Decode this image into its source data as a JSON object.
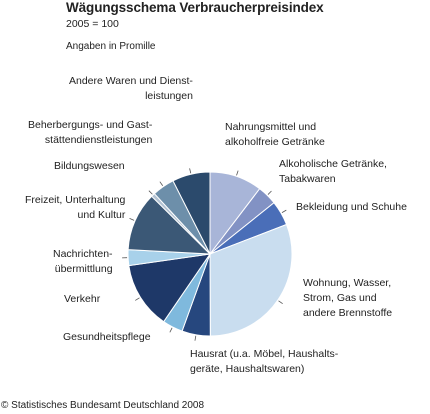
{
  "header": {
    "title": "Wägungsschema Verbraucherpreisindex",
    "subtitle": "2005 = 100",
    "unit": "Angaben in Promille"
  },
  "footer": {
    "source": "© Statistisches Bundesamt Deutschland 2008"
  },
  "chart_data": {
    "type": "pie",
    "title": "Wägungsschema Verbraucherpreisindex",
    "subtitle": "2005 = 100",
    "unit": "Angaben in Promille",
    "slices": [
      {
        "label_lines": [
          "Nahrungsmittel und",
          "alkoholfreie Getränke"
        ],
        "value": 103.55,
        "color": "#a8b5d8"
      },
      {
        "label_lines": [
          "Alkoholische Getränke,",
          "Tabakwaren"
        ],
        "value": 38.99,
        "color": "#8292c4"
      },
      {
        "label_lines": [
          "Bekleidung und Schuhe"
        ],
        "value": 48.88,
        "color": "#4a6eb8"
      },
      {
        "label_lines": [
          "Wohnung, Wasser,",
          "Strom, Gas und",
          "andere Brennstoffe"
        ],
        "value": 308.0,
        "color": "#c9ddef"
      },
      {
        "label_lines": [
          "Hausrat (u.a. Möbel, Haushalts-",
          "geräte, Haushaltswaren)"
        ],
        "value": 55.87,
        "color": "#26477e"
      },
      {
        "label_lines": [
          "Gesundheitspflege"
        ],
        "value": 40.27,
        "color": "#7fb9dd"
      },
      {
        "label_lines": [
          "Verkehr"
        ],
        "value": 131.9,
        "color": "#1e3868"
      },
      {
        "label_lines": [
          "Nachrichten-",
          "übermittlung"
        ],
        "value": 31.0,
        "color": "#a8d1ea"
      },
      {
        "label_lines": [
          "Freizeit, Unterhaltung",
          "und Kultur"
        ],
        "value": 115.68,
        "color": "#3b5876"
      },
      {
        "label_lines": [
          "Bildungswesen"
        ],
        "value": 7.4,
        "color": "#b3c3d3"
      },
      {
        "label_lines": [
          "Beherbergungs- und Gast-",
          "stättendienstleistungen"
        ],
        "value": 43.99,
        "color": "#6d8faa"
      },
      {
        "label_lines": [
          "Andere Waren und Dienst-",
          "leistungen"
        ],
        "value": 74.47,
        "color": "#2b4a6c"
      }
    ]
  }
}
